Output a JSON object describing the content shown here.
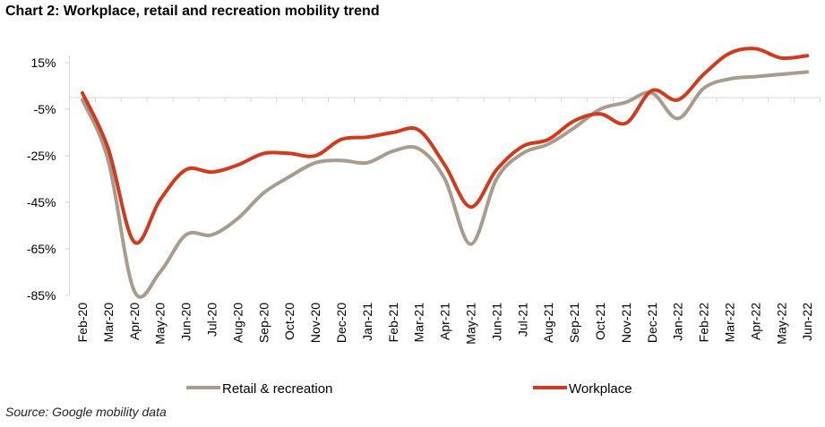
{
  "chart_data": {
    "type": "line",
    "title": "Chart 2: Workplace, retail and recreation mobility trend",
    "source": "Source: Google mobility data",
    "xlabel": "",
    "ylabel": "",
    "ylim": [
      -85,
      15
    ],
    "yticks": [
      15,
      -5,
      -25,
      -45,
      -65,
      -85
    ],
    "ytick_labels": [
      "15%",
      "-5%",
      "-25%",
      "-45%",
      "-65%",
      "-85%"
    ],
    "grid": false,
    "legend_position": "bottom",
    "categories": [
      "Feb-20",
      "Mar-20",
      "Apr-20",
      "May-20",
      "Jun-20",
      "Jul-20",
      "Aug-20",
      "Sep-20",
      "Oct-20",
      "Nov-20",
      "Dec-20",
      "Jan-21",
      "Feb-21",
      "Mar-21",
      "Apr-21",
      "May-21",
      "Jun-21",
      "Jul-21",
      "Aug-21",
      "Sep-21",
      "Oct-21",
      "Nov-21",
      "Dec-21",
      "Jan-22",
      "Feb-22",
      "Mar-22",
      "Apr-22",
      "May-22",
      "Jun-22"
    ],
    "series": [
      {
        "name": "Retail & recreation",
        "color": "#a89c8e",
        "values": [
          -1,
          -27,
          -83,
          -75,
          -59,
          -59,
          -52,
          -41,
          -34,
          -28,
          -27,
          -28,
          -23,
          -22,
          -35,
          -63,
          -35,
          -24,
          -20,
          -13,
          -5,
          -2,
          2,
          -9,
          4,
          8,
          9,
          10,
          11
        ]
      },
      {
        "name": "Workplace",
        "color": "#d33a1c",
        "values": [
          2,
          -22,
          -62,
          -44,
          -31,
          -32,
          -29,
          -24,
          -24,
          -25,
          -18,
          -17,
          -15,
          -14,
          -29,
          -47,
          -31,
          -21,
          -18,
          -10,
          -7,
          -11,
          3,
          -1,
          10,
          19,
          21,
          17,
          18
        ]
      }
    ]
  }
}
